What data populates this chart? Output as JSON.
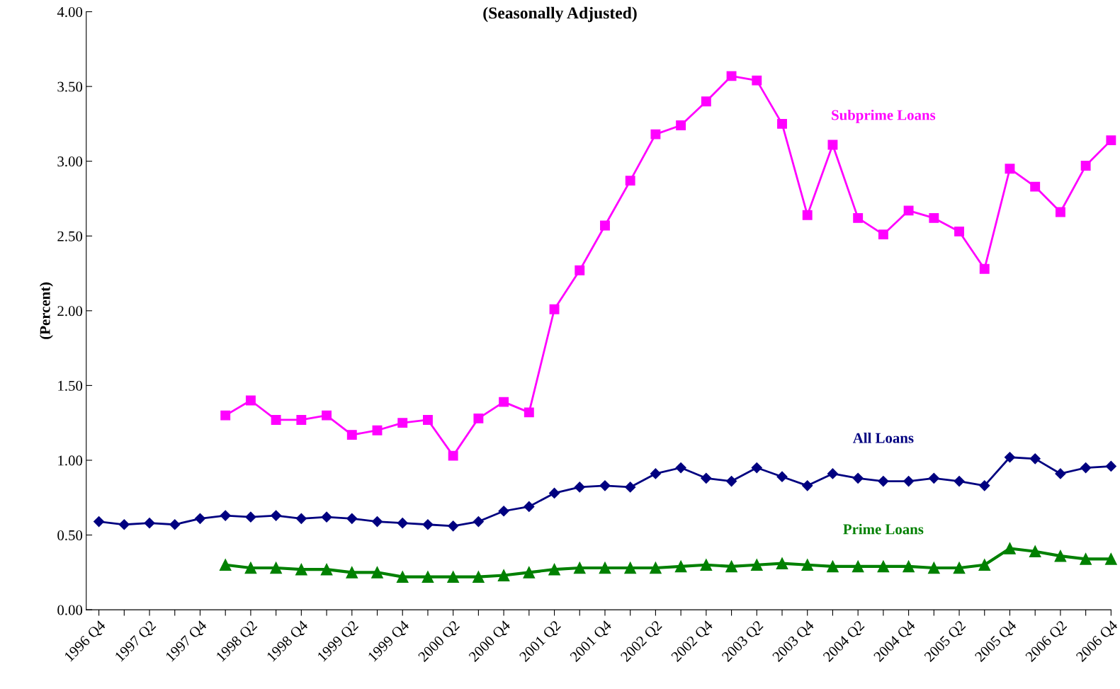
{
  "chart_data": {
    "type": "line",
    "title": "(Seasonally Adjusted)",
    "ylabel": "(Percent)",
    "categories": [
      "1996 Q4",
      null,
      "1997 Q2",
      null,
      "1997 Q4",
      null,
      "1998 Q2",
      null,
      "1998 Q4",
      null,
      "1999 Q2",
      null,
      "1999 Q4",
      null,
      "2000 Q2",
      null,
      "2000 Q4",
      null,
      "2001 Q2",
      null,
      "2001 Q4",
      null,
      "2002 Q2",
      null,
      "2002 Q4",
      null,
      "2003 Q2",
      null,
      "2003 Q4",
      null,
      "2004 Q2",
      null,
      "2004 Q4",
      null,
      "2005 Q2",
      null,
      "2005 Q4",
      null,
      "2006 Q2",
      null,
      "2006 Q4"
    ],
    "series": [
      {
        "name": "Subprime Loans",
        "color": "#ff00ff",
        "marker": "square",
        "values": [
          null,
          null,
          null,
          null,
          null,
          1.3,
          1.4,
          1.27,
          1.27,
          1.3,
          1.17,
          1.2,
          1.25,
          1.27,
          1.03,
          1.28,
          1.39,
          1.32,
          2.01,
          2.27,
          2.57,
          2.87,
          3.18,
          3.24,
          3.4,
          3.57,
          3.54,
          3.25,
          2.64,
          3.11,
          2.62,
          2.51,
          2.67,
          2.62,
          2.53,
          2.28,
          2.95,
          2.83,
          2.66,
          2.97,
          3.14
        ]
      },
      {
        "name": "All Loans",
        "color": "#000080",
        "marker": "diamond",
        "values": [
          0.59,
          0.57,
          0.58,
          0.57,
          0.61,
          0.63,
          0.62,
          0.63,
          0.61,
          0.62,
          0.61,
          0.59,
          0.58,
          0.57,
          0.56,
          0.59,
          0.66,
          0.69,
          0.78,
          0.82,
          0.83,
          0.82,
          0.91,
          0.95,
          0.88,
          0.86,
          0.95,
          0.89,
          0.83,
          0.91,
          0.88,
          0.86,
          0.86,
          0.88,
          0.86,
          0.83,
          1.02,
          1.01,
          0.91,
          0.95,
          0.96
        ]
      },
      {
        "name": "Prime Loans",
        "color": "#008000",
        "marker": "triangle",
        "values": [
          null,
          null,
          null,
          null,
          null,
          0.3,
          0.28,
          0.28,
          0.27,
          0.27,
          0.25,
          0.25,
          0.22,
          0.22,
          0.22,
          0.22,
          0.23,
          0.25,
          0.27,
          0.28,
          0.28,
          0.28,
          0.28,
          0.29,
          0.3,
          0.29,
          0.3,
          0.31,
          0.3,
          0.29,
          0.29,
          0.29,
          0.29,
          0.28,
          0.28,
          0.3,
          0.41,
          0.39,
          0.36,
          0.34,
          0.34
        ]
      }
    ],
    "ylim": [
      0,
      4
    ],
    "yticks": [
      {
        "value": 0,
        "label": "0.00"
      },
      {
        "value": 0.5,
        "label": "0.50"
      },
      {
        "value": 1,
        "label": "1.00"
      },
      {
        "value": 1.5,
        "label": "1.50"
      },
      {
        "value": 2,
        "label": "2.00"
      },
      {
        "value": 2.5,
        "label": "2.50"
      },
      {
        "value": 3,
        "label": "3.00"
      },
      {
        "value": 3.5,
        "label": "3.50"
      },
      {
        "value": 4,
        "label": "4.00"
      }
    ],
    "grid": false,
    "legend": false,
    "line_style": "solid"
  }
}
